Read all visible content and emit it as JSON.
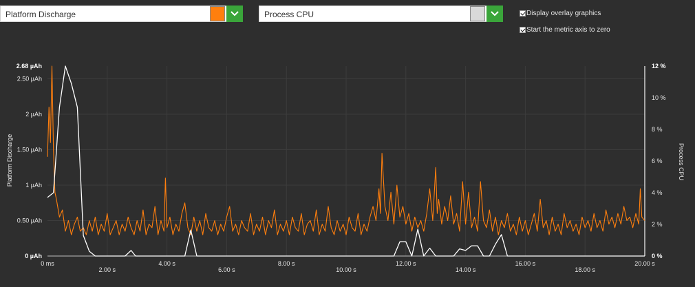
{
  "metric_selector": {
    "selected": "Platform Discharge",
    "color": "#ff7f0e"
  },
  "overlay_selector": {
    "selected": "Process CPU",
    "color": "#d9d9d9"
  },
  "options": {
    "overlay_label": "Display overlay graphics",
    "overlay_checked": true,
    "zero_label": "Start the metric axis to zero",
    "zero_checked": true
  },
  "icons": {
    "dropdown": "chevron-down-icon",
    "checkbox": "checkmark-icon"
  },
  "chart_data": {
    "type": "line",
    "x_unit": "s",
    "xlim": [
      0,
      20
    ],
    "x_ticks": [
      "0 ms",
      "2.00 s",
      "4.00 s",
      "6.00 s",
      "8.00 s",
      "10.00 s",
      "12.00 s",
      "14.00 s",
      "16.00 s",
      "18.00 s",
      "20.00 s"
    ],
    "left_axis": {
      "label": "Platform Discharge",
      "unit": "µAh",
      "ylim": [
        0,
        2.68
      ],
      "ticks": [
        "0 µAh",
        "0.50 µAh",
        "1 µAh",
        "1.50 µAh",
        "2 µAh",
        "2.50 µAh",
        "2.68 µAh"
      ]
    },
    "right_axis": {
      "label": "Process CPU",
      "unit": "%",
      "ylim": [
        0,
        12
      ],
      "ticks": [
        "0 %",
        "2 %",
        "4 %",
        "6 %",
        "8 %",
        "10 %",
        "12 %"
      ]
    },
    "series": [
      {
        "name": "Platform Discharge",
        "axis": "left",
        "color": "#ff7f0e",
        "points": [
          [
            0.0,
            1.4
          ],
          [
            0.05,
            2.1
          ],
          [
            0.1,
            1.6
          ],
          [
            0.15,
            2.68
          ],
          [
            0.2,
            1.5
          ],
          [
            0.25,
            0.9
          ],
          [
            0.3,
            0.8
          ],
          [
            0.4,
            0.55
          ],
          [
            0.5,
            0.65
          ],
          [
            0.6,
            0.35
          ],
          [
            0.7,
            0.5
          ],
          [
            0.8,
            0.3
          ],
          [
            0.9,
            0.45
          ],
          [
            1.0,
            0.55
          ],
          [
            1.1,
            0.35
          ],
          [
            1.2,
            0.4
          ],
          [
            1.3,
            0.3
          ],
          [
            1.4,
            0.5
          ],
          [
            1.5,
            0.35
          ],
          [
            1.6,
            0.55
          ],
          [
            1.7,
            0.3
          ],
          [
            1.8,
            0.45
          ],
          [
            1.9,
            0.35
          ],
          [
            2.0,
            0.6
          ],
          [
            2.1,
            0.3
          ],
          [
            2.2,
            0.4
          ],
          [
            2.3,
            0.5
          ],
          [
            2.4,
            0.3
          ],
          [
            2.5,
            0.45
          ],
          [
            2.6,
            0.35
          ],
          [
            2.7,
            0.55
          ],
          [
            2.8,
            0.4
          ],
          [
            2.9,
            0.3
          ],
          [
            3.0,
            0.5
          ],
          [
            3.1,
            0.35
          ],
          [
            3.2,
            0.65
          ],
          [
            3.3,
            0.3
          ],
          [
            3.4,
            0.45
          ],
          [
            3.5,
            0.4
          ],
          [
            3.6,
            0.7
          ],
          [
            3.7,
            0.3
          ],
          [
            3.8,
            0.5
          ],
          [
            3.9,
            0.35
          ],
          [
            3.95,
            1.1
          ],
          [
            4.0,
            0.4
          ],
          [
            4.1,
            0.55
          ],
          [
            4.2,
            0.3
          ],
          [
            4.3,
            0.45
          ],
          [
            4.4,
            0.35
          ],
          [
            4.5,
            0.6
          ],
          [
            4.6,
            0.75
          ],
          [
            4.7,
            0.4
          ],
          [
            4.8,
            0.3
          ],
          [
            4.9,
            0.55
          ],
          [
            5.0,
            0.35
          ],
          [
            5.1,
            0.5
          ],
          [
            5.2,
            0.3
          ],
          [
            5.3,
            0.6
          ],
          [
            5.4,
            0.4
          ],
          [
            5.5,
            0.35
          ],
          [
            5.6,
            0.5
          ],
          [
            5.7,
            0.3
          ],
          [
            5.8,
            0.45
          ],
          [
            5.9,
            0.35
          ],
          [
            6.0,
            0.55
          ],
          [
            6.1,
            0.7
          ],
          [
            6.2,
            0.35
          ],
          [
            6.3,
            0.45
          ],
          [
            6.4,
            0.3
          ],
          [
            6.5,
            0.5
          ],
          [
            6.6,
            0.4
          ],
          [
            6.7,
            0.35
          ],
          [
            6.8,
            0.6
          ],
          [
            6.9,
            0.3
          ],
          [
            7.0,
            0.45
          ],
          [
            7.1,
            0.35
          ],
          [
            7.2,
            0.55
          ],
          [
            7.3,
            0.3
          ],
          [
            7.4,
            0.5
          ],
          [
            7.5,
            0.4
          ],
          [
            7.6,
            0.65
          ],
          [
            7.7,
            0.3
          ],
          [
            7.8,
            0.45
          ],
          [
            7.9,
            0.35
          ],
          [
            8.0,
            0.5
          ],
          [
            8.1,
            0.3
          ],
          [
            8.2,
            0.55
          ],
          [
            8.3,
            0.4
          ],
          [
            8.4,
            0.35
          ],
          [
            8.5,
            0.6
          ],
          [
            8.6,
            0.3
          ],
          [
            8.7,
            0.45
          ],
          [
            8.8,
            0.5
          ],
          [
            8.9,
            0.35
          ],
          [
            9.0,
            0.65
          ],
          [
            9.1,
            0.3
          ],
          [
            9.2,
            0.45
          ],
          [
            9.3,
            0.35
          ],
          [
            9.4,
            0.7
          ],
          [
            9.5,
            0.4
          ],
          [
            9.6,
            0.3
          ],
          [
            9.7,
            0.5
          ],
          [
            9.8,
            0.35
          ],
          [
            9.9,
            0.45
          ],
          [
            10.0,
            0.3
          ],
          [
            10.1,
            0.55
          ],
          [
            10.2,
            0.4
          ],
          [
            10.3,
            0.35
          ],
          [
            10.4,
            0.6
          ],
          [
            10.5,
            0.3
          ],
          [
            10.6,
            0.45
          ],
          [
            10.7,
            0.35
          ],
          [
            10.8,
            0.55
          ],
          [
            10.9,
            0.7
          ],
          [
            11.0,
            0.5
          ],
          [
            11.1,
            0.95
          ],
          [
            11.15,
            0.6
          ],
          [
            11.2,
            1.45
          ],
          [
            11.3,
            0.7
          ],
          [
            11.4,
            0.5
          ],
          [
            11.5,
            0.9
          ],
          [
            11.6,
            0.45
          ],
          [
            11.7,
            1.0
          ],
          [
            11.8,
            0.55
          ],
          [
            11.9,
            0.7
          ],
          [
            12.0,
            0.45
          ],
          [
            12.1,
            0.6
          ],
          [
            12.2,
            0.35
          ],
          [
            12.3,
            0.55
          ],
          [
            12.4,
            0.4
          ],
          [
            12.5,
            0.5
          ],
          [
            12.6,
            0.35
          ],
          [
            12.7,
            0.6
          ],
          [
            12.8,
            0.95
          ],
          [
            12.9,
            0.5
          ],
          [
            13.0,
            1.25
          ],
          [
            13.05,
            0.6
          ],
          [
            13.1,
            0.8
          ],
          [
            13.2,
            0.45
          ],
          [
            13.3,
            0.7
          ],
          [
            13.4,
            0.5
          ],
          [
            13.5,
            0.85
          ],
          [
            13.6,
            0.45
          ],
          [
            13.7,
            0.6
          ],
          [
            13.8,
            0.35
          ],
          [
            13.9,
            1.05
          ],
          [
            14.0,
            0.45
          ],
          [
            14.1,
            0.9
          ],
          [
            14.2,
            0.4
          ],
          [
            14.3,
            0.55
          ],
          [
            14.4,
            0.35
          ],
          [
            14.5,
            1.05
          ],
          [
            14.6,
            0.5
          ],
          [
            14.7,
            0.4
          ],
          [
            14.8,
            0.65
          ],
          [
            14.9,
            0.35
          ],
          [
            15.0,
            0.55
          ],
          [
            15.1,
            0.3
          ],
          [
            15.2,
            0.5
          ],
          [
            15.3,
            0.4
          ],
          [
            15.4,
            0.6
          ],
          [
            15.5,
            0.35
          ],
          [
            15.6,
            0.45
          ],
          [
            15.7,
            0.3
          ],
          [
            15.8,
            0.55
          ],
          [
            15.9,
            0.35
          ],
          [
            16.0,
            0.5
          ],
          [
            16.1,
            0.3
          ],
          [
            16.2,
            0.45
          ],
          [
            16.3,
            0.6
          ],
          [
            16.4,
            0.35
          ],
          [
            16.5,
            0.8
          ],
          [
            16.6,
            0.4
          ],
          [
            16.7,
            0.5
          ],
          [
            16.8,
            0.3
          ],
          [
            16.9,
            0.55
          ],
          [
            17.0,
            0.35
          ],
          [
            17.1,
            0.45
          ],
          [
            17.2,
            0.3
          ],
          [
            17.3,
            0.6
          ],
          [
            17.4,
            0.4
          ],
          [
            17.5,
            0.5
          ],
          [
            17.6,
            0.35
          ],
          [
            17.7,
            0.45
          ],
          [
            17.8,
            0.3
          ],
          [
            17.9,
            0.55
          ],
          [
            18.0,
            0.4
          ],
          [
            18.1,
            0.5
          ],
          [
            18.2,
            0.35
          ],
          [
            18.3,
            0.6
          ],
          [
            18.4,
            0.4
          ],
          [
            18.5,
            0.5
          ],
          [
            18.6,
            0.35
          ],
          [
            18.7,
            0.65
          ],
          [
            18.8,
            0.45
          ],
          [
            18.9,
            0.55
          ],
          [
            19.0,
            0.4
          ],
          [
            19.1,
            0.6
          ],
          [
            19.2,
            0.45
          ],
          [
            19.3,
            0.7
          ],
          [
            19.4,
            0.5
          ],
          [
            19.5,
            0.55
          ],
          [
            19.6,
            0.4
          ],
          [
            19.7,
            0.6
          ],
          [
            19.8,
            0.45
          ],
          [
            19.85,
            0.95
          ],
          [
            19.9,
            0.55
          ],
          [
            20.0,
            0.5
          ]
        ]
      },
      {
        "name": "Process CPU",
        "axis": "right",
        "color": "#ffffff",
        "points": [
          [
            0.0,
            3.7
          ],
          [
            0.2,
            4.0
          ],
          [
            0.4,
            9.4
          ],
          [
            0.6,
            12.0
          ],
          [
            0.8,
            10.9
          ],
          [
            1.0,
            9.4
          ],
          [
            1.2,
            1.3
          ],
          [
            1.4,
            0.3
          ],
          [
            1.6,
            0.0
          ],
          [
            2.0,
            0.0
          ],
          [
            2.4,
            0.0
          ],
          [
            2.6,
            0.0
          ],
          [
            2.8,
            0.35
          ],
          [
            2.95,
            0.0
          ],
          [
            3.2,
            0.0
          ],
          [
            4.0,
            0.0
          ],
          [
            4.4,
            0.0
          ],
          [
            4.6,
            0.0
          ],
          [
            4.8,
            1.65
          ],
          [
            5.0,
            0.0
          ],
          [
            6.0,
            0.0
          ],
          [
            8.0,
            0.0
          ],
          [
            10.0,
            0.0
          ],
          [
            11.2,
            0.0
          ],
          [
            11.6,
            0.0
          ],
          [
            11.8,
            0.9
          ],
          [
            12.0,
            0.9
          ],
          [
            12.2,
            0.0
          ],
          [
            12.4,
            1.7
          ],
          [
            12.6,
            0.0
          ],
          [
            12.8,
            0.5
          ],
          [
            13.0,
            0.0
          ],
          [
            13.4,
            0.0
          ],
          [
            13.6,
            0.0
          ],
          [
            13.8,
            0.45
          ],
          [
            14.0,
            0.35
          ],
          [
            14.2,
            0.65
          ],
          [
            14.4,
            0.65
          ],
          [
            14.6,
            0.0
          ],
          [
            14.8,
            0.0
          ],
          [
            15.0,
            0.75
          ],
          [
            15.2,
            1.35
          ],
          [
            15.4,
            0.0
          ],
          [
            15.6,
            0.0
          ],
          [
            16.0,
            0.0
          ],
          [
            18.0,
            0.0
          ],
          [
            20.0,
            0.0
          ]
        ]
      }
    ],
    "grid": true,
    "legend": "none"
  }
}
